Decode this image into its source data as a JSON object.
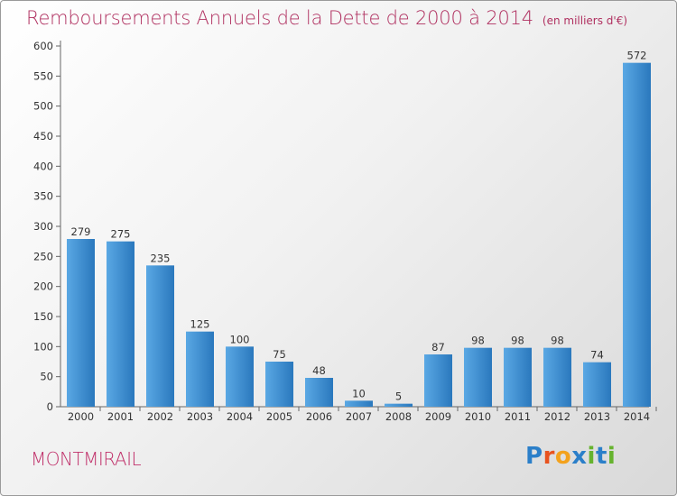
{
  "title": "Remboursements Annuels de la Dette de 2000 à 2014",
  "unit_note": "(en milliers d'€)",
  "commune": "MONTMIRAIL",
  "logo": {
    "letters": [
      "P",
      "r",
      "o",
      "x",
      "i",
      "t",
      "i"
    ],
    "colors": [
      "#2b7fc9",
      "#e8531f",
      "#f3a21d",
      "#2b7fc9",
      "#66b32e",
      "#2b7fc9",
      "#66b32e"
    ]
  },
  "colors": {
    "bar_light": "#5aa8e4",
    "bar_dark": "#2a78bd",
    "title": "#b03060"
  },
  "chart_data": {
    "type": "bar",
    "title": "Remboursements Annuels de la Dette de 2000 à 2014",
    "categories": [
      "2000",
      "2001",
      "2002",
      "2003",
      "2004",
      "2005",
      "2006",
      "2007",
      "2008",
      "2009",
      "2010",
      "2011",
      "2012",
      "2013",
      "2014"
    ],
    "values": [
      279,
      275,
      235,
      125,
      100,
      75,
      48,
      10,
      5,
      87,
      98,
      98,
      98,
      74,
      572
    ],
    "ylim": [
      0,
      600
    ],
    "yticks": [
      0,
      50,
      100,
      150,
      200,
      250,
      300,
      350,
      400,
      450,
      500,
      550,
      600
    ],
    "grid": false,
    "data_labels": true
  }
}
